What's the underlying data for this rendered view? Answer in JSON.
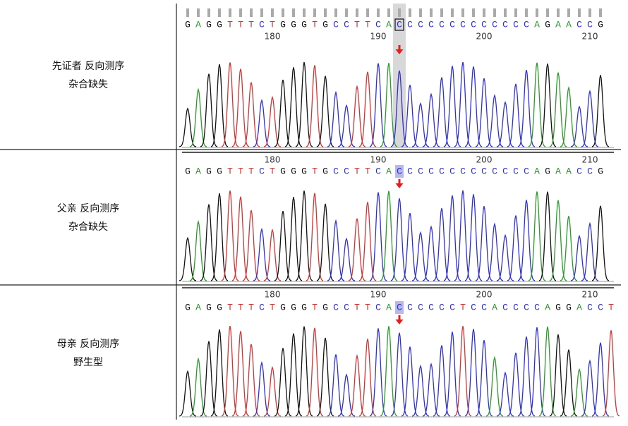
{
  "panels": [
    {
      "label": [
        "先证者 反向测序",
        "杂合缺失"
      ],
      "sequence": [
        "G",
        "A",
        "G",
        "G",
        "T",
        "T",
        "T",
        "C",
        "T",
        "G",
        "G",
        "G",
        "T",
        "G",
        "C",
        "C",
        "T",
        "T",
        "C",
        "A",
        "C",
        "C",
        "C",
        "C",
        "C",
        "C",
        "C",
        "C",
        "C",
        "C",
        "C",
        "C",
        "C",
        "A",
        "G",
        "A",
        "A",
        "C",
        "C",
        "G"
      ],
      "positions": [
        180,
        190,
        200,
        210
      ]
    },
    {
      "label": [
        "父亲 反向测序",
        "杂合缺失"
      ],
      "sequence": [
        "G",
        "A",
        "G",
        "G",
        "T",
        "T",
        "T",
        "C",
        "T",
        "G",
        "G",
        "G",
        "T",
        "G",
        "C",
        "C",
        "T",
        "T",
        "C",
        "A",
        "C",
        "C",
        "C",
        "C",
        "C",
        "C",
        "C",
        "C",
        "C",
        "C",
        "C",
        "C",
        "C",
        "A",
        "G",
        "A",
        "A",
        "C",
        "C",
        "G"
      ],
      "positions": [
        180,
        190,
        200,
        210
      ]
    },
    {
      "label": [
        "母亲 反向测序",
        "野生型"
      ],
      "sequence": [
        "G",
        "A",
        "G",
        "G",
        "T",
        "T",
        "T",
        "C",
        "T",
        "G",
        "G",
        "G",
        "T",
        "G",
        "C",
        "C",
        "T",
        "T",
        "C",
        "A",
        "C",
        "C",
        "C",
        "C",
        "C",
        "C",
        "T",
        "C",
        "C",
        "A",
        "C",
        "C",
        "C",
        "C",
        "A",
        "G",
        "G",
        "A",
        "C",
        "C",
        "T"
      ],
      "positions": [
        180,
        190,
        200,
        210
      ]
    }
  ]
}
